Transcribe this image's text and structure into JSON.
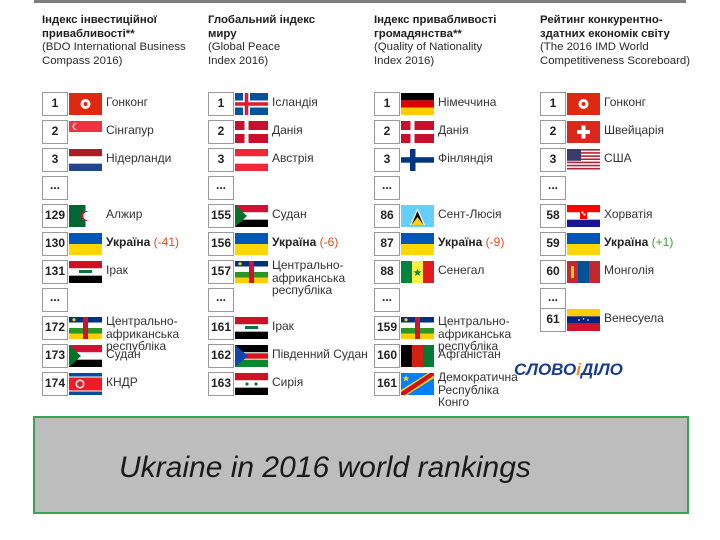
{
  "columns": [
    {
      "title": [
        "Індекс інвестиційної",
        "привабливості**"
      ],
      "sub": [
        "(BDO International Business",
        "Compass 2016)"
      ],
      "rows": [
        {
          "rank": "1",
          "name": "Гонконг",
          "flag": "hk-flag-icon"
        },
        {
          "rank": "2",
          "name": "Сінгапур",
          "flag": "sg-flag-icon"
        },
        {
          "rank": "3",
          "name": "Нідерланди",
          "flag": "nl-flag-icon"
        },
        {
          "rank": "...",
          "name": "",
          "flag": ""
        },
        {
          "rank": "129",
          "name": "Алжир",
          "flag": "dz-flag-icon"
        },
        {
          "rank": "130",
          "name": "Україна",
          "delta": "(-41)",
          "flag": "ua-flag-icon"
        },
        {
          "rank": "131",
          "name": "Ірак",
          "flag": "iq-flag-icon"
        },
        {
          "rank": "...",
          "name": "",
          "flag": ""
        },
        {
          "rank": "172",
          "name": "Центрально-африканська республіка",
          "flag": "cf-flag-icon"
        },
        {
          "rank": "173",
          "name": "Судан",
          "flag": "sd-flag-icon"
        },
        {
          "rank": "174",
          "name": "КНДР",
          "flag": "kp-flag-icon"
        }
      ]
    },
    {
      "title": [
        "Глобальний індекс",
        "миру"
      ],
      "sub": [
        "(Global Peace",
        "Index 2016)"
      ],
      "rows": [
        {
          "rank": "1",
          "name": "Ісландія",
          "flag": "is-flag-icon"
        },
        {
          "rank": "2",
          "name": "Данія",
          "flag": "dk-flag-icon"
        },
        {
          "rank": "3",
          "name": "Австрія",
          "flag": "at-flag-icon"
        },
        {
          "rank": "...",
          "name": "",
          "flag": ""
        },
        {
          "rank": "155",
          "name": "Судан",
          "flag": "sd-flag-icon"
        },
        {
          "rank": "156",
          "name": "Україна",
          "delta": "(-6)",
          "flag": "ua-flag-icon"
        },
        {
          "rank": "157",
          "name": "Центрально-африканська республіка",
          "flag": "cf-flag-icon"
        },
        {
          "rank": "...",
          "name": "",
          "flag": ""
        },
        {
          "rank": "161",
          "name": "Ірак",
          "flag": "iq-flag-icon"
        },
        {
          "rank": "162",
          "name": "Південний Судан",
          "flag": "ss-flag-icon"
        },
        {
          "rank": "163",
          "name": "Сирія",
          "flag": "sy-flag-icon"
        }
      ]
    },
    {
      "title": [
        "Індекс привабливості",
        "громадянства**"
      ],
      "sub": [
        "(Quality of Nationality",
        "Index 2016)"
      ],
      "rows": [
        {
          "rank": "1",
          "name": "Німеччина",
          "flag": "de-flag-icon"
        },
        {
          "rank": "2",
          "name": "Данія",
          "flag": "dk-flag-icon"
        },
        {
          "rank": "3",
          "name": "Фінляндія",
          "flag": "fi-flag-icon"
        },
        {
          "rank": "...",
          "name": "",
          "flag": ""
        },
        {
          "rank": "86",
          "name": "Сент-Люсія",
          "flag": "lc-flag-icon"
        },
        {
          "rank": "87",
          "name": "Україна",
          "delta": "(-9)",
          "flag": "ua-flag-icon"
        },
        {
          "rank": "88",
          "name": "Сенегал",
          "flag": "sn-flag-icon"
        },
        {
          "rank": "...",
          "name": "",
          "flag": ""
        },
        {
          "rank": "159",
          "name": "Центрально-африканська республіка",
          "flag": "cf-flag-icon"
        },
        {
          "rank": "160",
          "name": "Афганістан",
          "flag": "af-flag-icon"
        },
        {
          "rank": "161",
          "name": "Демократична Республіка Конго",
          "flag": "cd-flag-icon"
        }
      ]
    },
    {
      "title": [
        "Рейтинг конкурентно-",
        "здатних економік світу"
      ],
      "sub": [
        "(The 2016 IMD World",
        "Competitiveness Scoreboard)"
      ],
      "rows": [
        {
          "rank": "1",
          "name": "Гонконг",
          "flag": "hk-flag-icon"
        },
        {
          "rank": "2",
          "name": "Швейцарія",
          "flag": "ch-flag-icon"
        },
        {
          "rank": "3",
          "name": "США",
          "flag": "us-flag-icon"
        },
        {
          "rank": "...",
          "name": "",
          "flag": ""
        },
        {
          "rank": "58",
          "name": "Хорватія",
          "flag": "hr-flag-icon"
        },
        {
          "rank": "59",
          "name": "Україна",
          "delta": "(+1)",
          "flag": "ua-flag-icon"
        },
        {
          "rank": "60",
          "name": "Монголія",
          "flag": "mn-flag-icon"
        },
        {
          "rank": "...",
          "name": "",
          "flag": ""
        },
        {
          "rank": "61",
          "name": "Венесуела",
          "flag": "ve-flag-icon"
        }
      ]
    }
  ],
  "logo": {
    "word1": "СЛОВО",
    "sep": "і",
    "word2": "ДІЛО"
  },
  "caption": "Ukraine in 2016 world rankings"
}
